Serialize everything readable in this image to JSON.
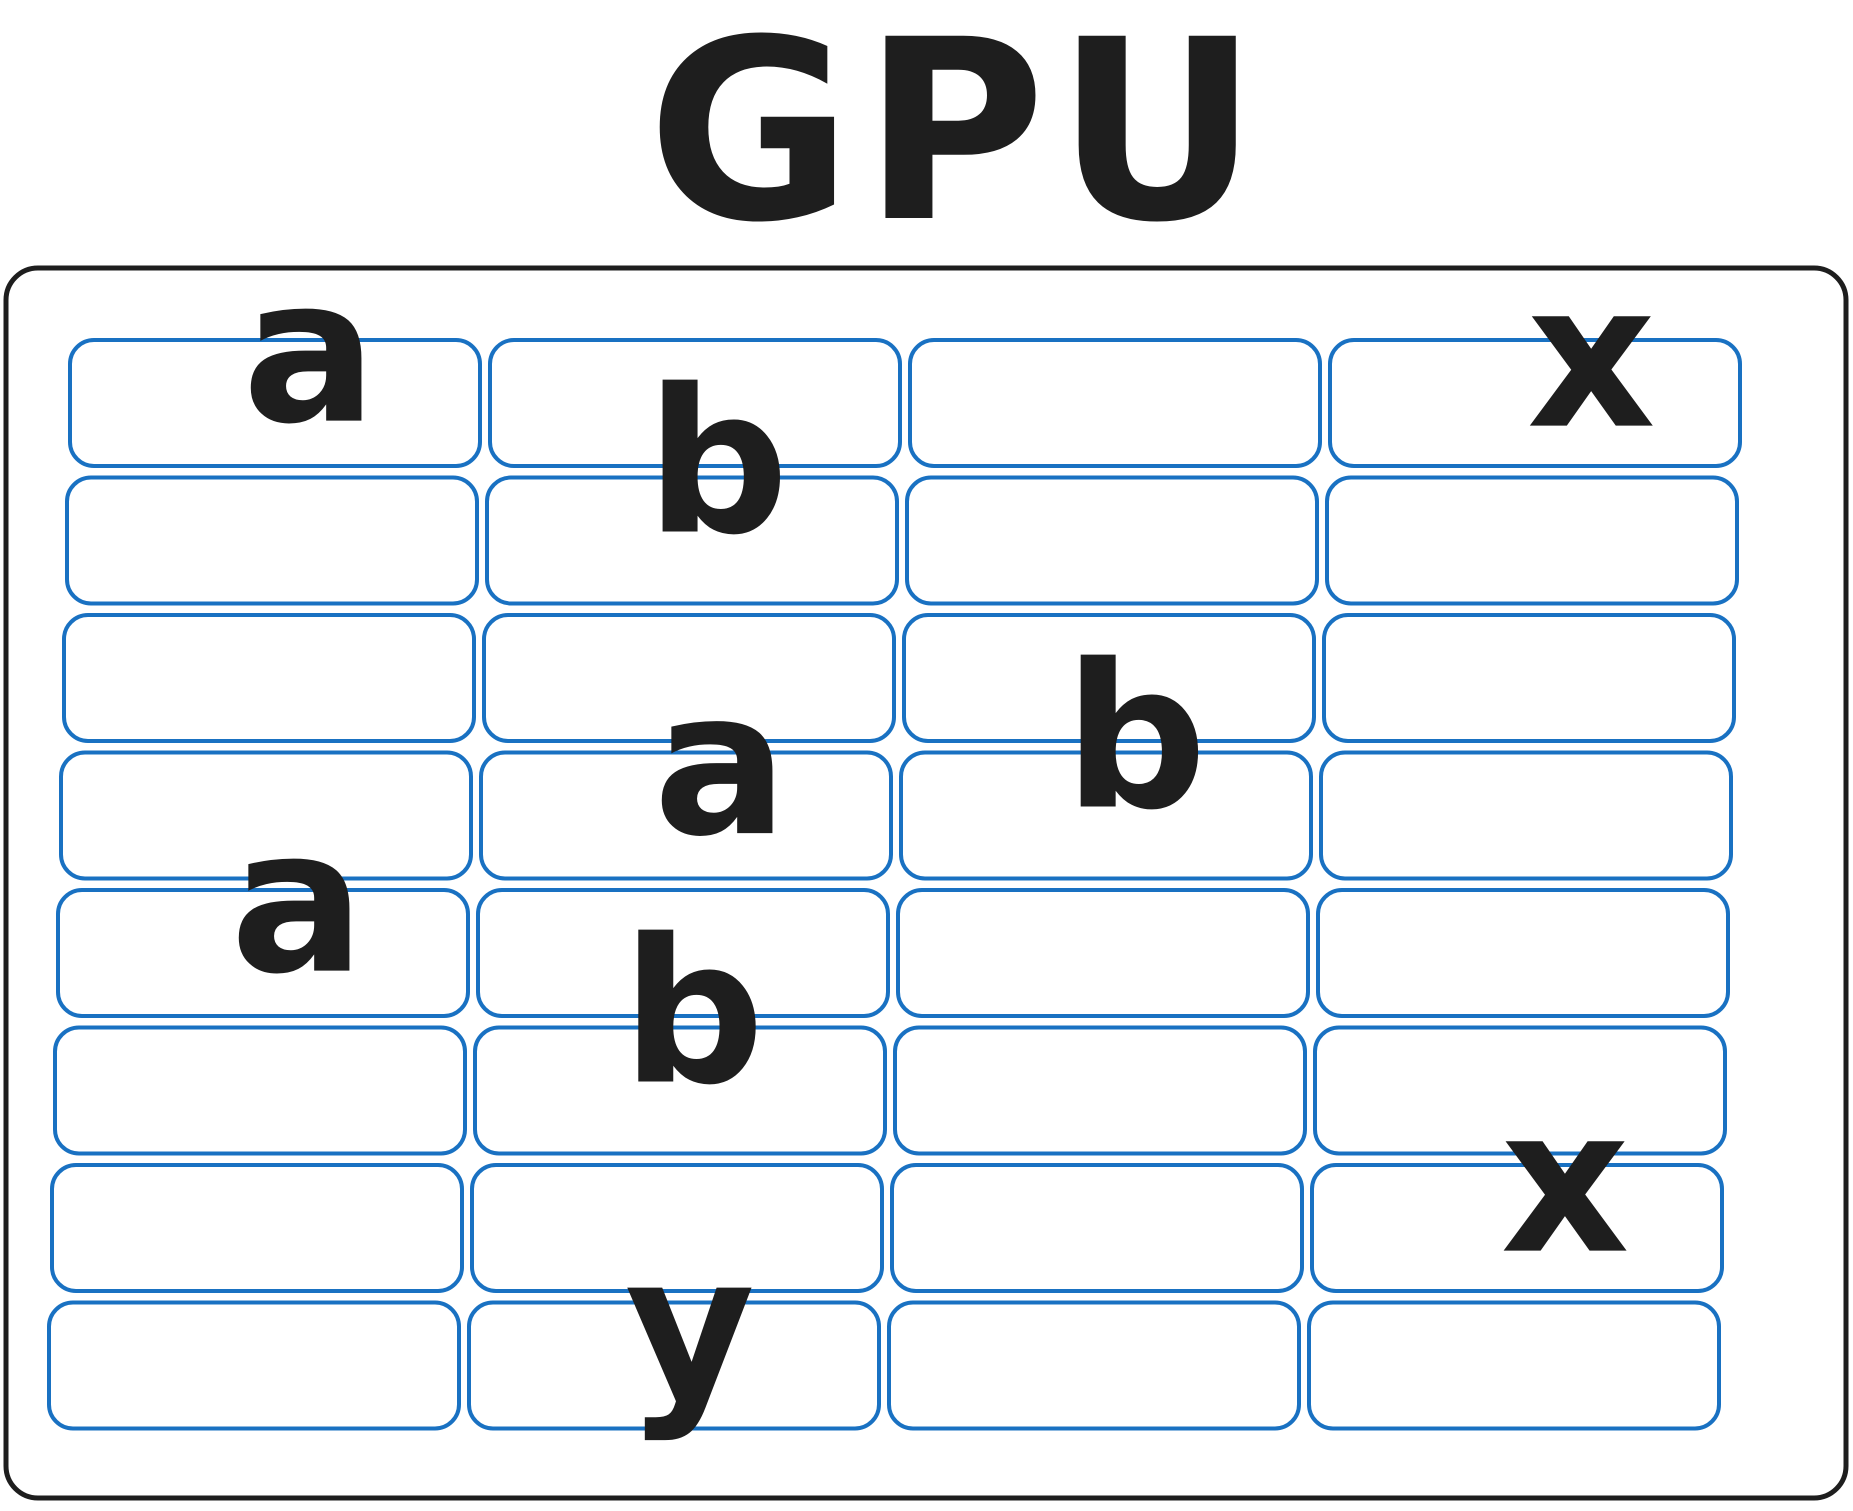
{
  "title": "GPU",
  "grid": {
    "rows": [
      [
        "a",
        "b",
        "",
        "x"
      ],
      [
        "",
        "",
        "",
        ""
      ],
      [
        "",
        "",
        "b",
        ""
      ],
      [
        "",
        "a",
        "",
        ""
      ],
      [
        "a",
        "b",
        "",
        ""
      ],
      [
        "",
        "",
        "",
        ""
      ],
      [
        "",
        "",
        "",
        "x"
      ],
      [
        "",
        "y",
        "",
        ""
      ]
    ]
  },
  "colors": {
    "cell_stroke": "#1971c2",
    "frame_stroke": "#1e1e1e",
    "text": "#1e1e1e"
  }
}
